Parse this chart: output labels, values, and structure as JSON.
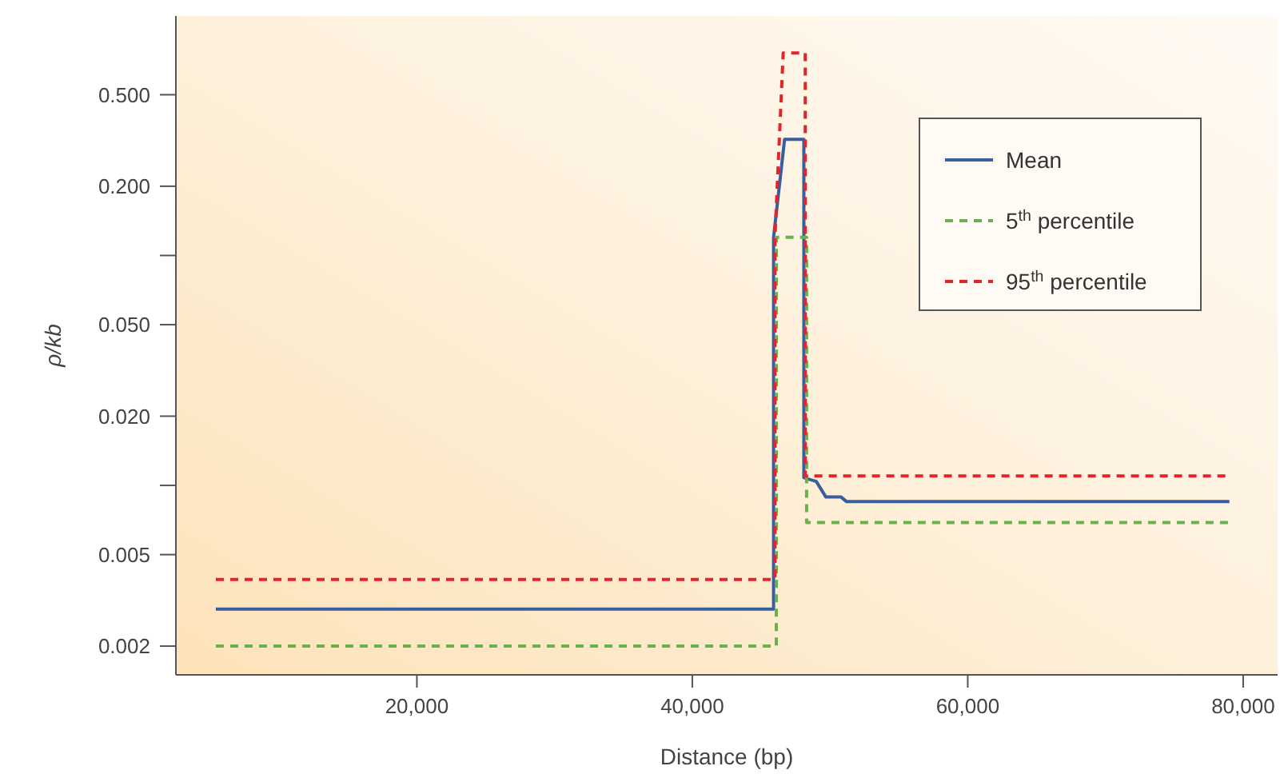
{
  "chart_data": {
    "type": "line",
    "xlabel": "Distance (bp)",
    "ylabel": "ρ/kb",
    "log": "y",
    "xlim": [
      2500,
      82500
    ],
    "ylim": [
      0.0015,
      1.1
    ],
    "xticks": [
      {
        "value": 20000,
        "label": "20,000"
      },
      {
        "value": 40000,
        "label": "40,000"
      },
      {
        "value": 60000,
        "label": "60,000"
      },
      {
        "value": 80000,
        "label": "80,000"
      }
    ],
    "yticks": [
      0.002,
      0.005,
      {
        "value": 0.01,
        "label": null
      },
      {
        "value": 0.02,
        "label": "0.020"
      },
      {
        "value": 0.05,
        "label": "0.050"
      },
      {
        "value": 0.1,
        "label": null
      },
      {
        "value": 0.2,
        "label": "0.200"
      },
      {
        "value": 0.5,
        "label": "0.500"
      }
    ],
    "legend": "top right",
    "grid": false,
    "series": [
      {
        "name": "Mean",
        "color": "#3a5d9c",
        "line_style": "solid",
        "x": [
          5400,
          45900,
          45900,
          46700,
          48100,
          48100,
          49000,
          49700,
          50800,
          51200,
          79000
        ],
        "values": [
          0.0029,
          0.0029,
          0.12,
          0.32,
          0.32,
          0.0108,
          0.0104,
          0.0089,
          0.0089,
          0.0085,
          0.0085
        ]
      },
      {
        "name": "5$^{th}$ percentile",
        "color": "#6ab04c",
        "line_style": "dashed",
        "x": [
          5400,
          46100,
          46100,
          48300,
          48300,
          79000
        ],
        "values": [
          0.002,
          0.002,
          0.12,
          0.12,
          0.0069,
          0.0069
        ]
      },
      {
        "name": "95$^{th}$ percentile",
        "color": "#e3242b",
        "line_style": "dashed",
        "x": [
          5400,
          46000,
          46000,
          46600,
          48200,
          48200,
          79000
        ],
        "values": [
          0.0039,
          0.0039,
          0.12,
          0.76,
          0.76,
          0.011,
          0.011
        ]
      }
    ]
  }
}
